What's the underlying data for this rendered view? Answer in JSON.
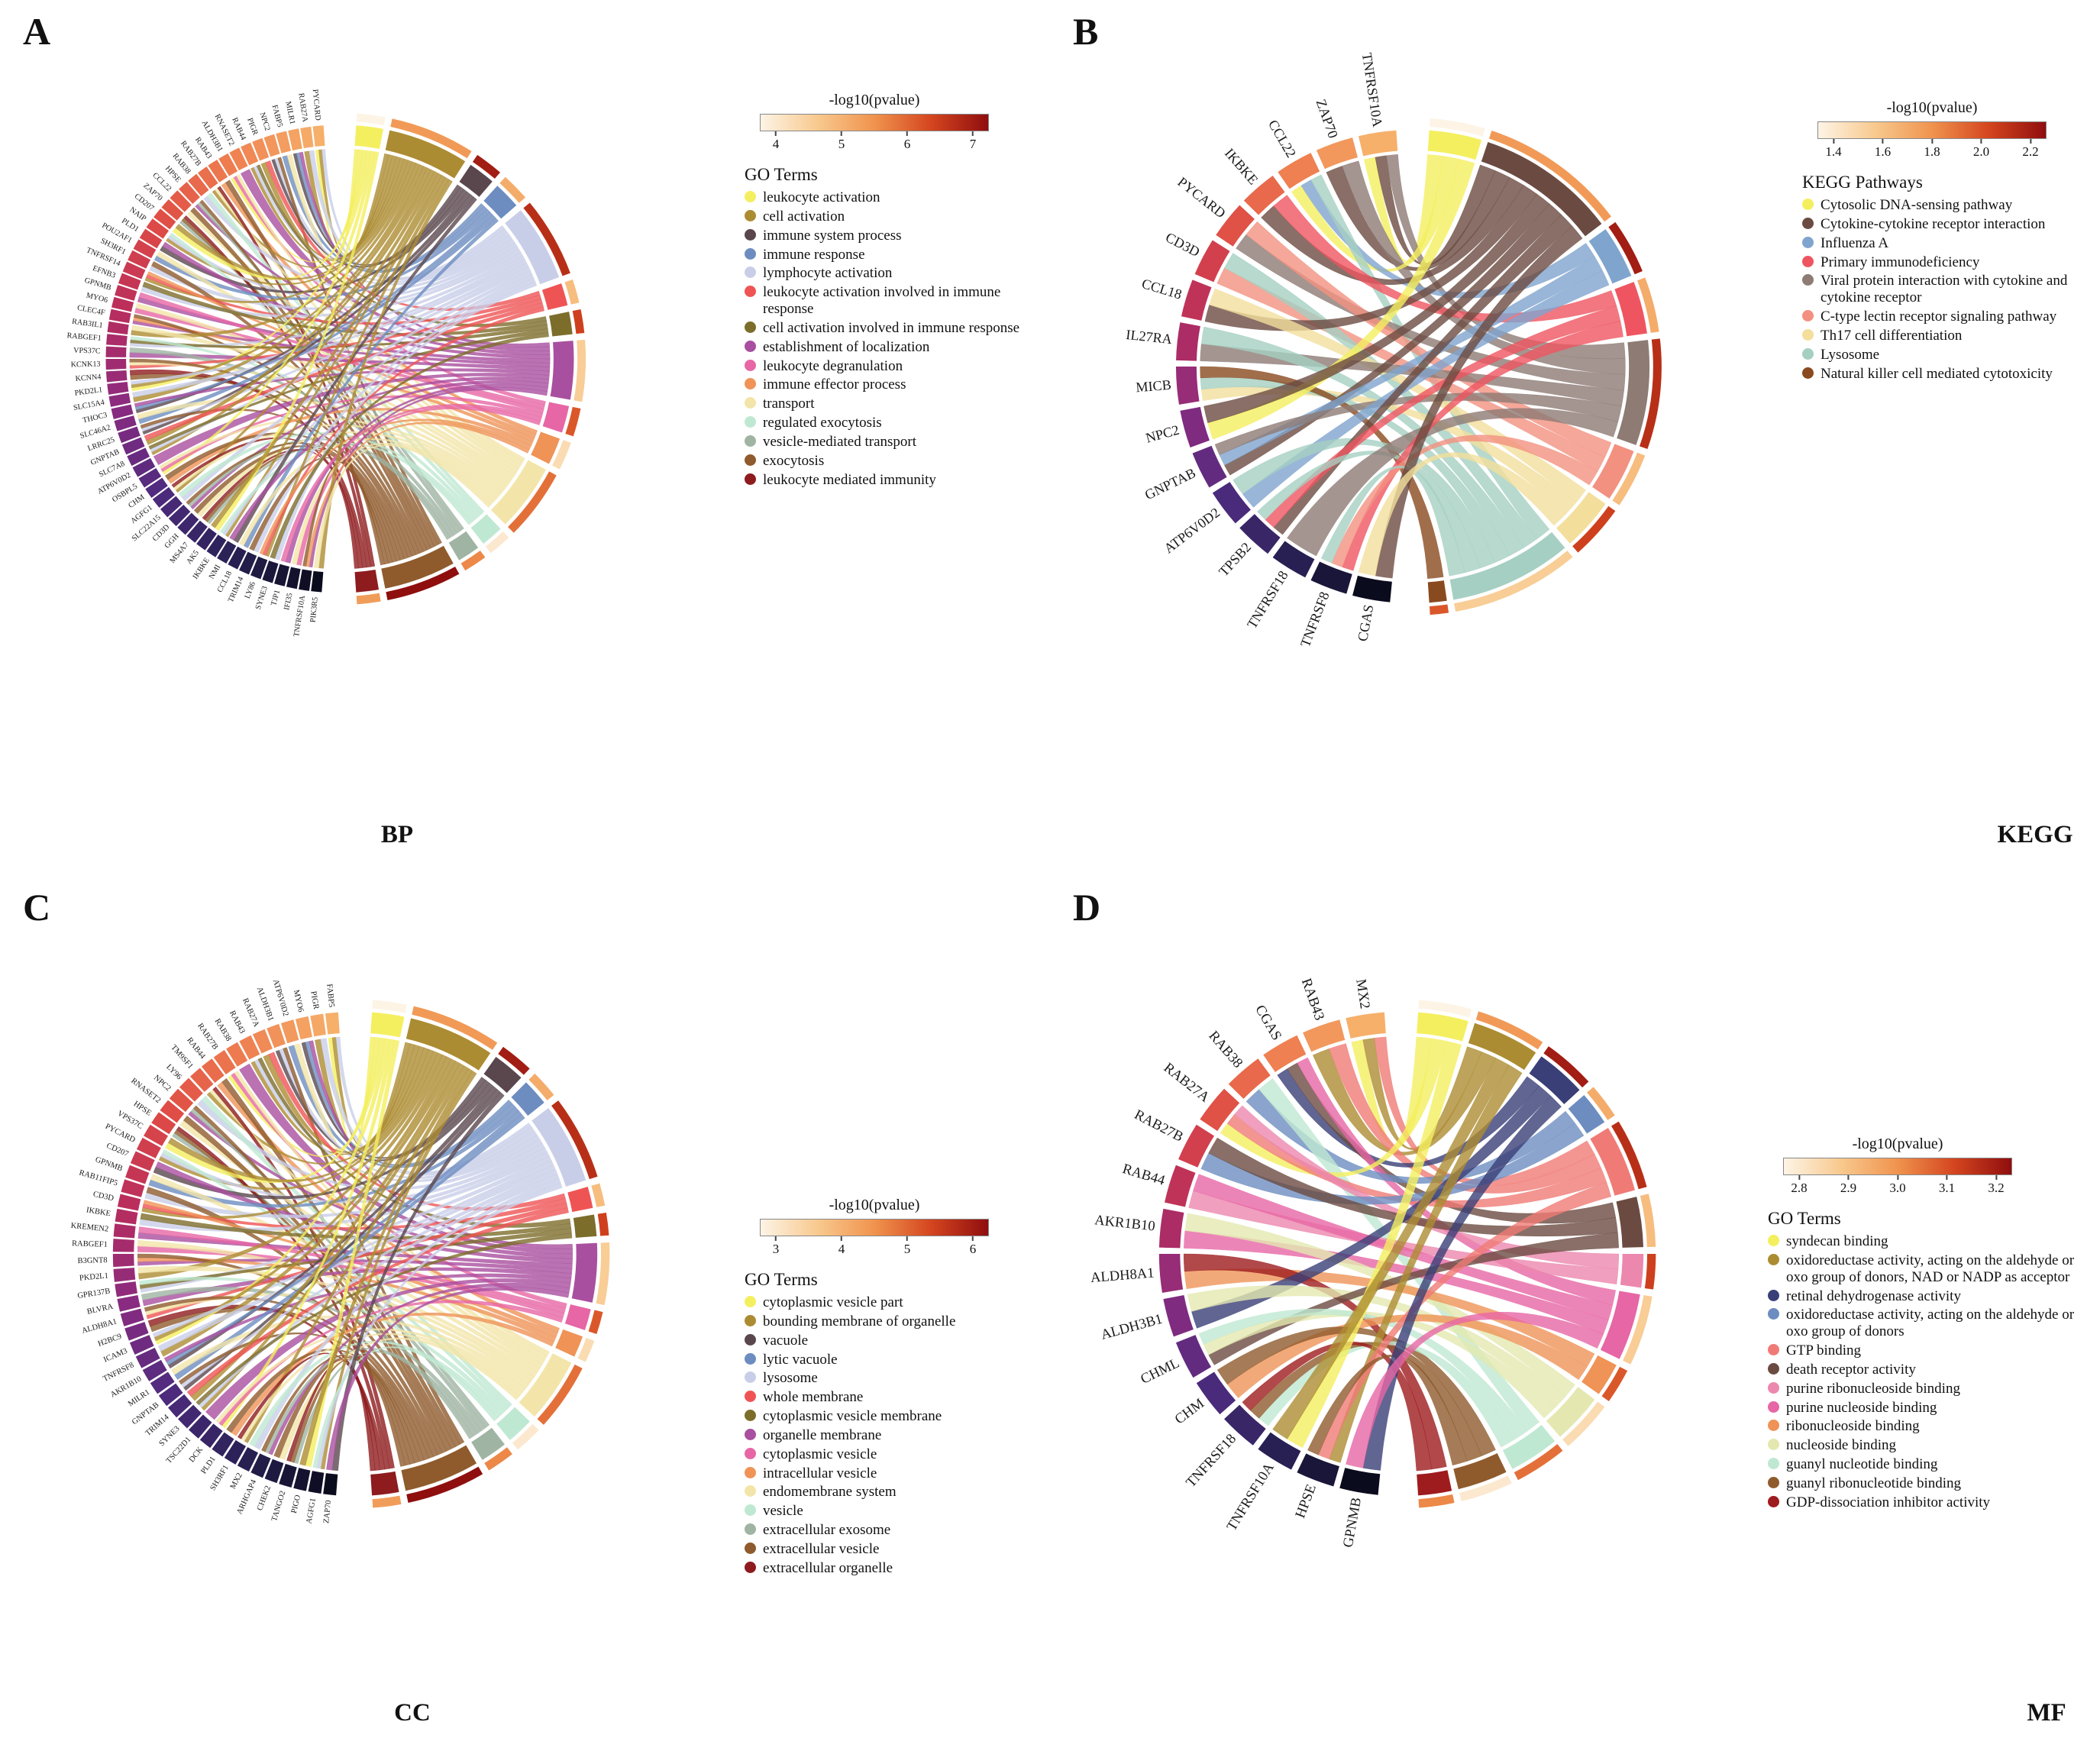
{
  "style": {
    "pvalue_gradient": [
      "#FDF4E6",
      "#F8C98E",
      "#F0934E",
      "#D4451F",
      "#8F0E0E"
    ],
    "gene_arc_gradient": [
      "#F6B06A",
      "#EE7D4F",
      "#DE4A45",
      "#B92D5D",
      "#8A2B80",
      "#4F2B7F",
      "#2A2257",
      "#0B0B1E"
    ]
  },
  "chart_data": [
    {
      "type": "chord",
      "panel_label": "A",
      "bottom_label": "BP",
      "legend_title": "GO Terms",
      "scale": {
        "title": "-log10(pvalue)",
        "ticks": [
          "4",
          "5",
          "6",
          "7"
        ]
      },
      "genes": [
        "PYCARD",
        "RAB27A",
        "MILR1",
        "FABP5",
        "NPC2",
        "PIGR",
        "RAB44",
        "RNASET2",
        "ALDH3B1",
        "RAB43",
        "RAB27B",
        "RAB38",
        "HPSE",
        "CCL22",
        "ZAP70",
        "CD207",
        "NAIP",
        "PLD1",
        "POU2AF1",
        "SH3RF1",
        "TNFRSF14",
        "EFNB3",
        "GPNMB",
        "MYO6",
        "CLEC4F",
        "RAB3IL1",
        "RABGEF1",
        "VPS37C",
        "KCNK13",
        "KCNN4",
        "PKD2L1",
        "SLC15A4",
        "THOC3",
        "SLC46A2",
        "LRRC25",
        "GNPTAB",
        "SLC7A8",
        "ATP6V0D2",
        "OSBPL5",
        "CHM",
        "AGFG1",
        "SLC22A15",
        "CD3D",
        "GGH",
        "MS4A7",
        "AK5",
        "IKBKE",
        "NMI",
        "CCL18",
        "TRIM14",
        "LY86",
        "SYNE3",
        "TJP1",
        "IFI35",
        "TNFRSF10A",
        "PIK3R5"
      ],
      "terms": [
        {
          "label": "leukocyte activation",
          "color": "#F4EF5F"
        },
        {
          "label": "cell activation",
          "color": "#AC8C32"
        },
        {
          "label": "immune system process",
          "color": "#5A474D"
        },
        {
          "label": "immune response",
          "color": "#6D8DC0"
        },
        {
          "label": "lymphocyte activation",
          "color": "#C9CEE8"
        },
        {
          "label": "leukocyte activation involved in immune response",
          "color": "#EF5455"
        },
        {
          "label": "cell activation involved in immune response",
          "color": "#7D6D2B"
        },
        {
          "label": "establishment of localization",
          "color": "#A94F9F"
        },
        {
          "label": "leukocyte degranulation",
          "color": "#E766A5"
        },
        {
          "label": "immune effector process",
          "color": "#EF9357"
        },
        {
          "label": "transport",
          "color": "#F3E5A9"
        },
        {
          "label": "regulated exocytosis",
          "color": "#BFE8D2"
        },
        {
          "label": "vesicle-mediated transport",
          "color": "#9FB4A2"
        },
        {
          "label": "exocytosis",
          "color": "#8F5B2D"
        },
        {
          "label": "leukocyte mediated immunity",
          "color": "#8E1B1E"
        }
      ]
    },
    {
      "type": "chord",
      "panel_label": "B",
      "bottom_label": "KEGG",
      "legend_title": "KEGG Pathways",
      "scale": {
        "title": "-log10(pvalue)",
        "ticks": [
          "1.4",
          "1.6",
          "1.8",
          "2.0",
          "2.2"
        ]
      },
      "genes": [
        "TNFRSF10A",
        "ZAP70",
        "CCL22",
        "IKBKE",
        "PYCARD",
        "CD3D",
        "CCL18",
        "IL27RA",
        "MICB",
        "NPC2",
        "GNPTAB",
        "ATP6V0D2",
        "TPSB2",
        "TNFRSF18",
        "TNFRSF8",
        "CGAS"
      ],
      "terms": [
        {
          "label": "Cytosolic DNA-sensing pathway",
          "color": "#F4EF5F"
        },
        {
          "label": "Cytokine-cytokine receptor interaction",
          "color": "#6B4B41"
        },
        {
          "label": "Influenza A",
          "color": "#7FA4CE"
        },
        {
          "label": "Primary immunodeficiency",
          "color": "#EF5560"
        },
        {
          "label": "Viral protein interaction with cytokine and cytokine receptor",
          "color": "#8D7B74"
        },
        {
          "label": "C-type lectin receptor signaling pathway",
          "color": "#F29180"
        },
        {
          "label": "Th17 cell differentiation",
          "color": "#F3DE9C"
        },
        {
          "label": "Lysosome",
          "color": "#A5CFC2"
        },
        {
          "label": "Natural killer cell mediated cytotoxicity",
          "color": "#8A4A1F"
        }
      ]
    },
    {
      "type": "chord",
      "panel_label": "C",
      "bottom_label": "CC",
      "legend_title": "GO Terms",
      "scale": {
        "title": "-log10(pvalue)",
        "ticks": [
          "3",
          "4",
          "5",
          "6"
        ]
      },
      "genes": [
        "FABP5",
        "PIGR",
        "MYO6",
        "ATP6V0D2",
        "ALDH3B1",
        "RAB27A",
        "RAB43",
        "RAB38",
        "RAB27B",
        "RAB44",
        "TM9SF1",
        "LY96",
        "NPC2",
        "RNASET2",
        "HPSE",
        "VPS37C",
        "PYCARD",
        "CD207",
        "GPNMB",
        "RAB11FIP5",
        "CD3D",
        "IKBKE",
        "KREMEN2",
        "RABGEF1",
        "B3GNT8",
        "PKD2L1",
        "GPR137B",
        "BLVRA",
        "ALDH8A1",
        "H2BC9",
        "ICAM3",
        "TNFRSF8",
        "AKR1B10",
        "MILR1",
        "GNPTAB",
        "TRIM14",
        "SYNE3",
        "TSC22D1",
        "DCK",
        "PLD1",
        "SH3RF1",
        "MX2",
        "ARHGAP4",
        "CHEK2",
        "TANGO2",
        "PIGO",
        "AGFG1",
        "ZAP70"
      ],
      "terms": [
        {
          "label": "cytoplasmic vesicle part",
          "color": "#F4EF5F"
        },
        {
          "label": "bounding membrane of organelle",
          "color": "#AC8C32"
        },
        {
          "label": "vacuole",
          "color": "#5A474D"
        },
        {
          "label": "lytic vacuole",
          "color": "#6D8DC0"
        },
        {
          "label": "lysosome",
          "color": "#C9CEE8"
        },
        {
          "label": "whole membrane",
          "color": "#EF5455"
        },
        {
          "label": "cytoplasmic vesicle membrane",
          "color": "#7D6D2B"
        },
        {
          "label": "organelle membrane",
          "color": "#A94F9F"
        },
        {
          "label": "cytoplasmic vesicle",
          "color": "#E766A5"
        },
        {
          "label": "intracellular vesicle",
          "color": "#EF9357"
        },
        {
          "label": "endomembrane system",
          "color": "#F3E5A9"
        },
        {
          "label": "vesicle",
          "color": "#BFE8D2"
        },
        {
          "label": "extracellular exosome",
          "color": "#9FB4A2"
        },
        {
          "label": "extracellular vesicle",
          "color": "#8F5B2D"
        },
        {
          "label": "extracellular organelle",
          "color": "#8E1B1E"
        }
      ]
    },
    {
      "type": "chord",
      "panel_label": "D",
      "bottom_label": "MF",
      "legend_title": "GO Terms",
      "scale": {
        "title": "-log10(pvalue)",
        "ticks": [
          "2.8",
          "2.9",
          "3.0",
          "3.1",
          "3.2"
        ]
      },
      "genes": [
        "MX2",
        "RAB43",
        "CGAS",
        "RAB38",
        "RAB27A",
        "RAB27B",
        "RAB44",
        "AKR1B10",
        "ALDH8A1",
        "ALDH3B1",
        "CHML",
        "CHM",
        "TNFRSF18",
        "TNFRSF10A",
        "HPSE",
        "GPNMB"
      ],
      "terms": [
        {
          "label": "syndecan binding",
          "color": "#F4EF5F"
        },
        {
          "label": "oxidoreductase activity, acting on the aldehyde or oxo group of donors, NAD or NADP as acceptor",
          "color": "#AC8C32"
        },
        {
          "label": "retinal dehydrogenase activity",
          "color": "#3A3F77"
        },
        {
          "label": "oxidoreductase activity, acting on the aldehyde or oxo group of donors",
          "color": "#6D8DC0"
        },
        {
          "label": "GTP binding",
          "color": "#F07B76"
        },
        {
          "label": "death receptor activity",
          "color": "#6B4B41"
        },
        {
          "label": "purine ribonucleoside binding",
          "color": "#EC87AE"
        },
        {
          "label": "purine nucleoside binding",
          "color": "#E766A5"
        },
        {
          "label": "ribonucleoside binding",
          "color": "#EF9357"
        },
        {
          "label": "nucleoside binding",
          "color": "#E4E8B0"
        },
        {
          "label": "guanyl nucleotide binding",
          "color": "#BFE8D2"
        },
        {
          "label": "guanyl ribonucleotide binding",
          "color": "#8F5B2D"
        },
        {
          "label": "GDP-dissociation inhibitor activity",
          "color": "#9E1B1E"
        }
      ]
    }
  ]
}
